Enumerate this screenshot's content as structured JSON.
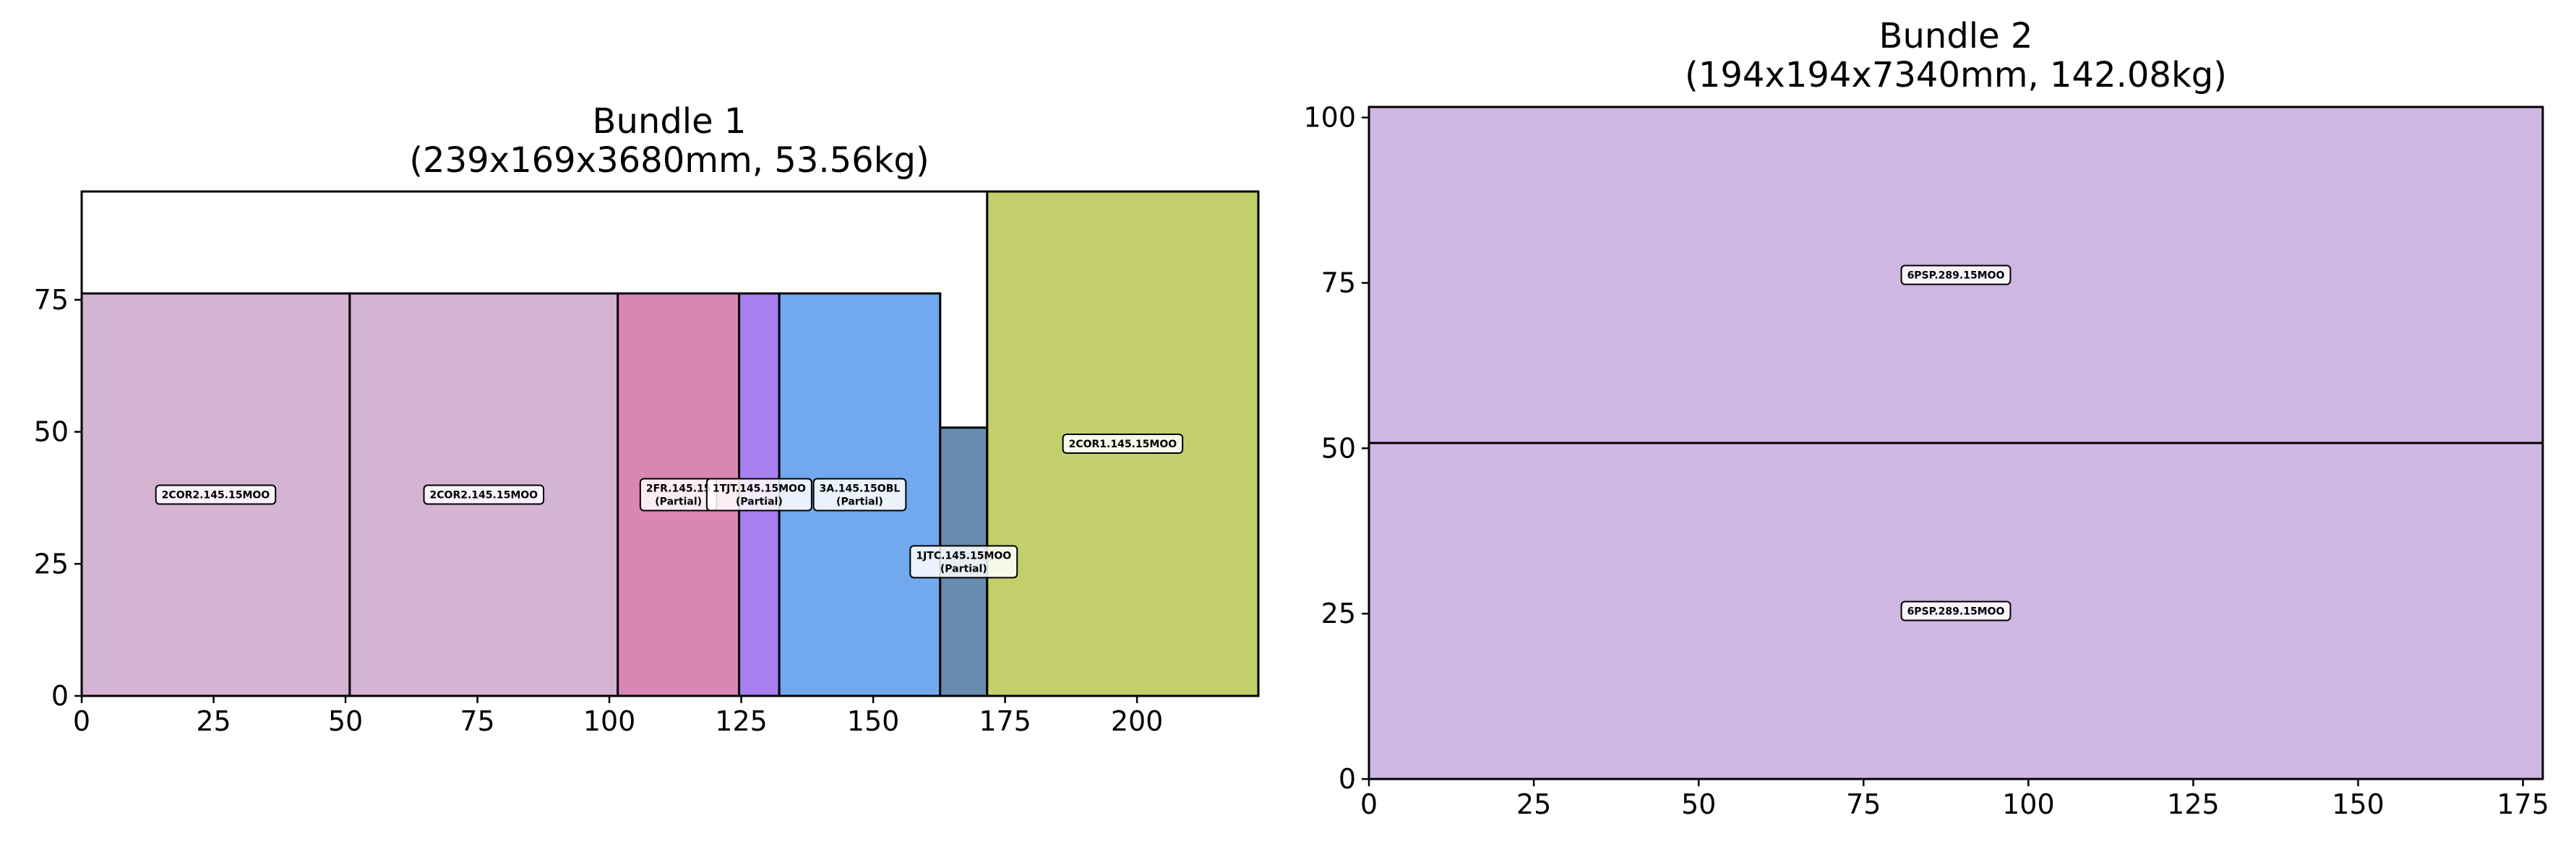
{
  "chart_data": [
    {
      "type": "rectangles",
      "title": "Bundle 1",
      "subtitle": "(239x169x3680mm, 53.56kg)",
      "xlabel": "",
      "ylabel": "",
      "xlim": [
        0,
        223
      ],
      "ylim": [
        0,
        95.5
      ],
      "xticks": [
        0,
        25,
        50,
        75,
        100,
        125,
        150,
        175,
        200
      ],
      "yticks": [
        0,
        25,
        50,
        75
      ],
      "grid": false,
      "items": [
        {
          "label": "2COR2.145.15MOO",
          "x": 0,
          "y": 0,
          "w": 50.8,
          "h": 76.2,
          "color": "#d4b3d3"
        },
        {
          "label": "2COR2.145.15MOO",
          "x": 50.8,
          "y": 0,
          "w": 50.8,
          "h": 76.2,
          "color": "#d4b3d3"
        },
        {
          "label": "2FR.145.15",
          "label2": "(Partial)",
          "x": 101.6,
          "y": 0,
          "w": 23,
          "h": 76.2,
          "color": "#d987b2"
        },
        {
          "label": "1TJT.145.15MOO",
          "label2": "(Partial)",
          "x": 124.6,
          "y": 0,
          "w": 7.6,
          "h": 76.2,
          "color": "#a77fef"
        },
        {
          "label": "3A.145.15OBL",
          "label2": "(Partial)",
          "x": 132.2,
          "y": 0,
          "w": 30.5,
          "h": 76.2,
          "color": "#72a8ed"
        },
        {
          "label": "1JTC.145.15MOO",
          "label2": "(Partial)",
          "x": 162.7,
          "y": 0,
          "w": 8.9,
          "h": 50.8,
          "color": "#658caf"
        },
        {
          "label": "2COR1.145.15MOO",
          "x": 171.6,
          "y": 0,
          "w": 51.4,
          "h": 95.5,
          "color": "#c3cf6a"
        }
      ]
    },
    {
      "type": "rectangles",
      "title": "Bundle 2",
      "subtitle": "(194x194x7340mm, 142.08kg)",
      "xlabel": "",
      "ylabel": "",
      "xlim": [
        0,
        178
      ],
      "ylim": [
        0,
        101.6
      ],
      "xticks": [
        0,
        25,
        50,
        75,
        100,
        125,
        150,
        175
      ],
      "yticks": [
        0,
        25,
        50,
        75,
        100
      ],
      "grid": false,
      "items": [
        {
          "label": "6PSP.289.15MOO",
          "x": 0,
          "y": 0,
          "w": 178,
          "h": 50.8,
          "color": "#d0b6e2"
        },
        {
          "label": "6PSP.289.15MOO",
          "x": 0,
          "y": 50.8,
          "w": 178,
          "h": 50.8,
          "color": "#d0b6e2"
        }
      ]
    }
  ]
}
